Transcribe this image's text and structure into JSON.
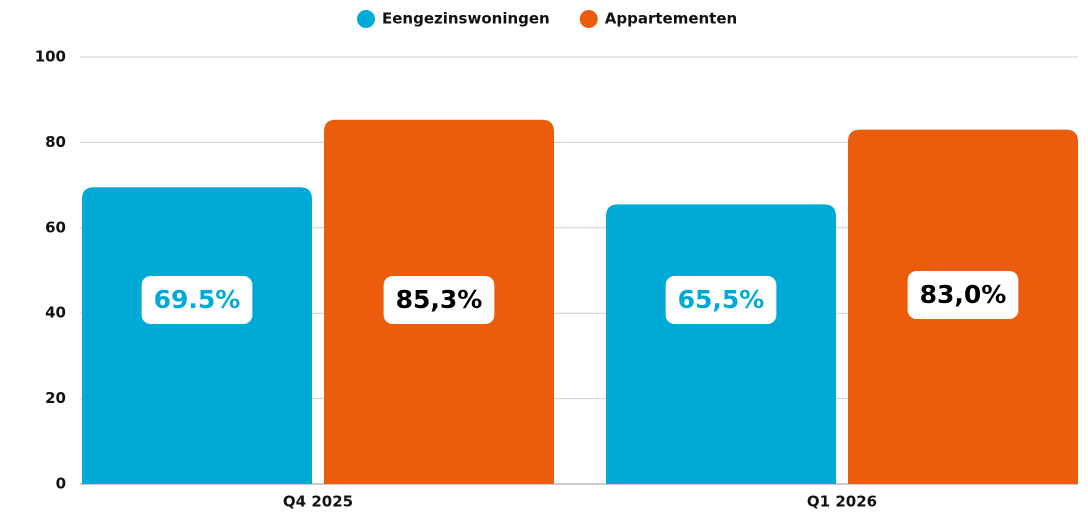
{
  "chart_data": {
    "type": "bar",
    "categories": [
      "Q4 2025",
      "Q1 2026"
    ],
    "series": [
      {
        "name": "Eengezinswoningen",
        "color": "#00aad6",
        "label_color": "#00aad6",
        "values": [
          69.5,
          65.5
        ],
        "value_labels": [
          "69.5%",
          "65,5%"
        ]
      },
      {
        "name": "Appartementen",
        "color": "#eb5d0c",
        "label_color": "#000000",
        "values": [
          85.3,
          83.0
        ],
        "value_labels": [
          "85,3%",
          "83,0%"
        ]
      }
    ],
    "ylim": [
      0,
      100
    ],
    "yticks": [
      0,
      20,
      40,
      60,
      80,
      100
    ],
    "grid": true,
    "legend": "top"
  }
}
